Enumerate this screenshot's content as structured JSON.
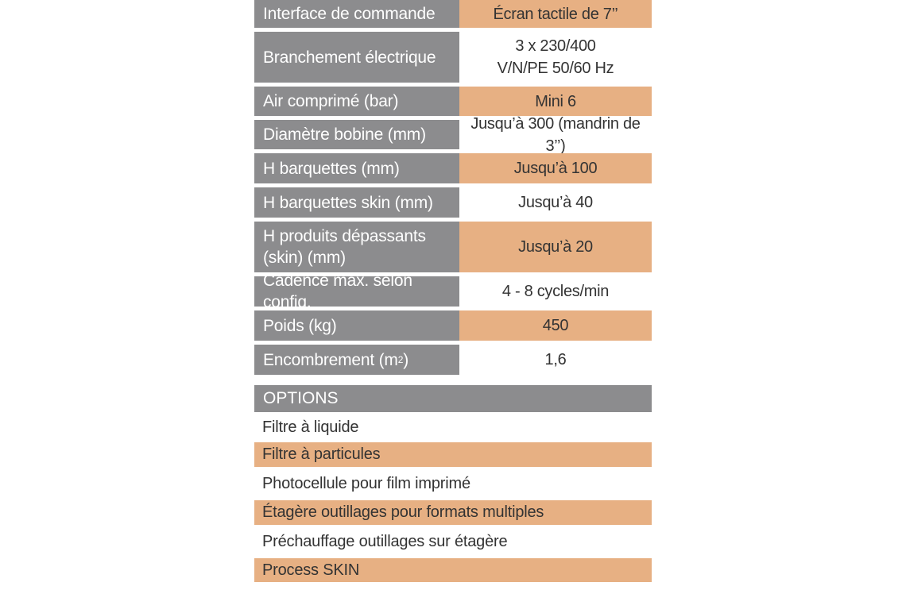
{
  "specs": [
    {
      "label": "Interface de commande",
      "value": "Écran tactile de 7’’",
      "highlight": true
    },
    {
      "label": "Branchement électrique",
      "value_line1": "3 x 230/400",
      "value_line2": "V/N/PE 50/60 Hz",
      "highlight": false
    },
    {
      "label": "Air comprimé (bar)",
      "value": "Mini 6",
      "highlight": true
    },
    {
      "label": "Diamètre bobine (mm)",
      "value": "Jusqu’à 300 (mandrin de 3’’)",
      "highlight": false
    },
    {
      "label": "H barquettes (mm)",
      "value": "Jusqu’à 100",
      "highlight": true
    },
    {
      "label": "H barquettes skin (mm)",
      "value": "Jusqu’à 40",
      "highlight": false
    },
    {
      "label_line1": "H produits dépassants",
      "label_line2": "(skin) (mm)",
      "value": "Jusqu’à 20",
      "highlight": true
    },
    {
      "label": "Cadence max. selon config.",
      "value": "4 - 8 cycles/min",
      "highlight": false
    },
    {
      "label": "Poids (kg)",
      "value": "450",
      "highlight": true
    },
    {
      "label": "Encombrement (m",
      "label_sup": "2",
      "label_end": ")",
      "value": "1,6",
      "highlight": false
    }
  ],
  "options": {
    "header": "OPTIONS",
    "items": [
      {
        "label": "Filtre à liquide",
        "highlight": false
      },
      {
        "label": "Filtre à particules",
        "highlight": true
      },
      {
        "label": "Photocellule pour film imprimé",
        "highlight": false
      },
      {
        "label": "Étagère outillages pour formats multiples",
        "highlight": true
      },
      {
        "label": "Préchauffage outillages sur étagère",
        "highlight": false
      },
      {
        "label": "Process SKIN",
        "highlight": true
      }
    ]
  },
  "colors": {
    "label_bg": "#8c8c8e",
    "highlight_bg": "#e7b083",
    "text": "#333333"
  }
}
